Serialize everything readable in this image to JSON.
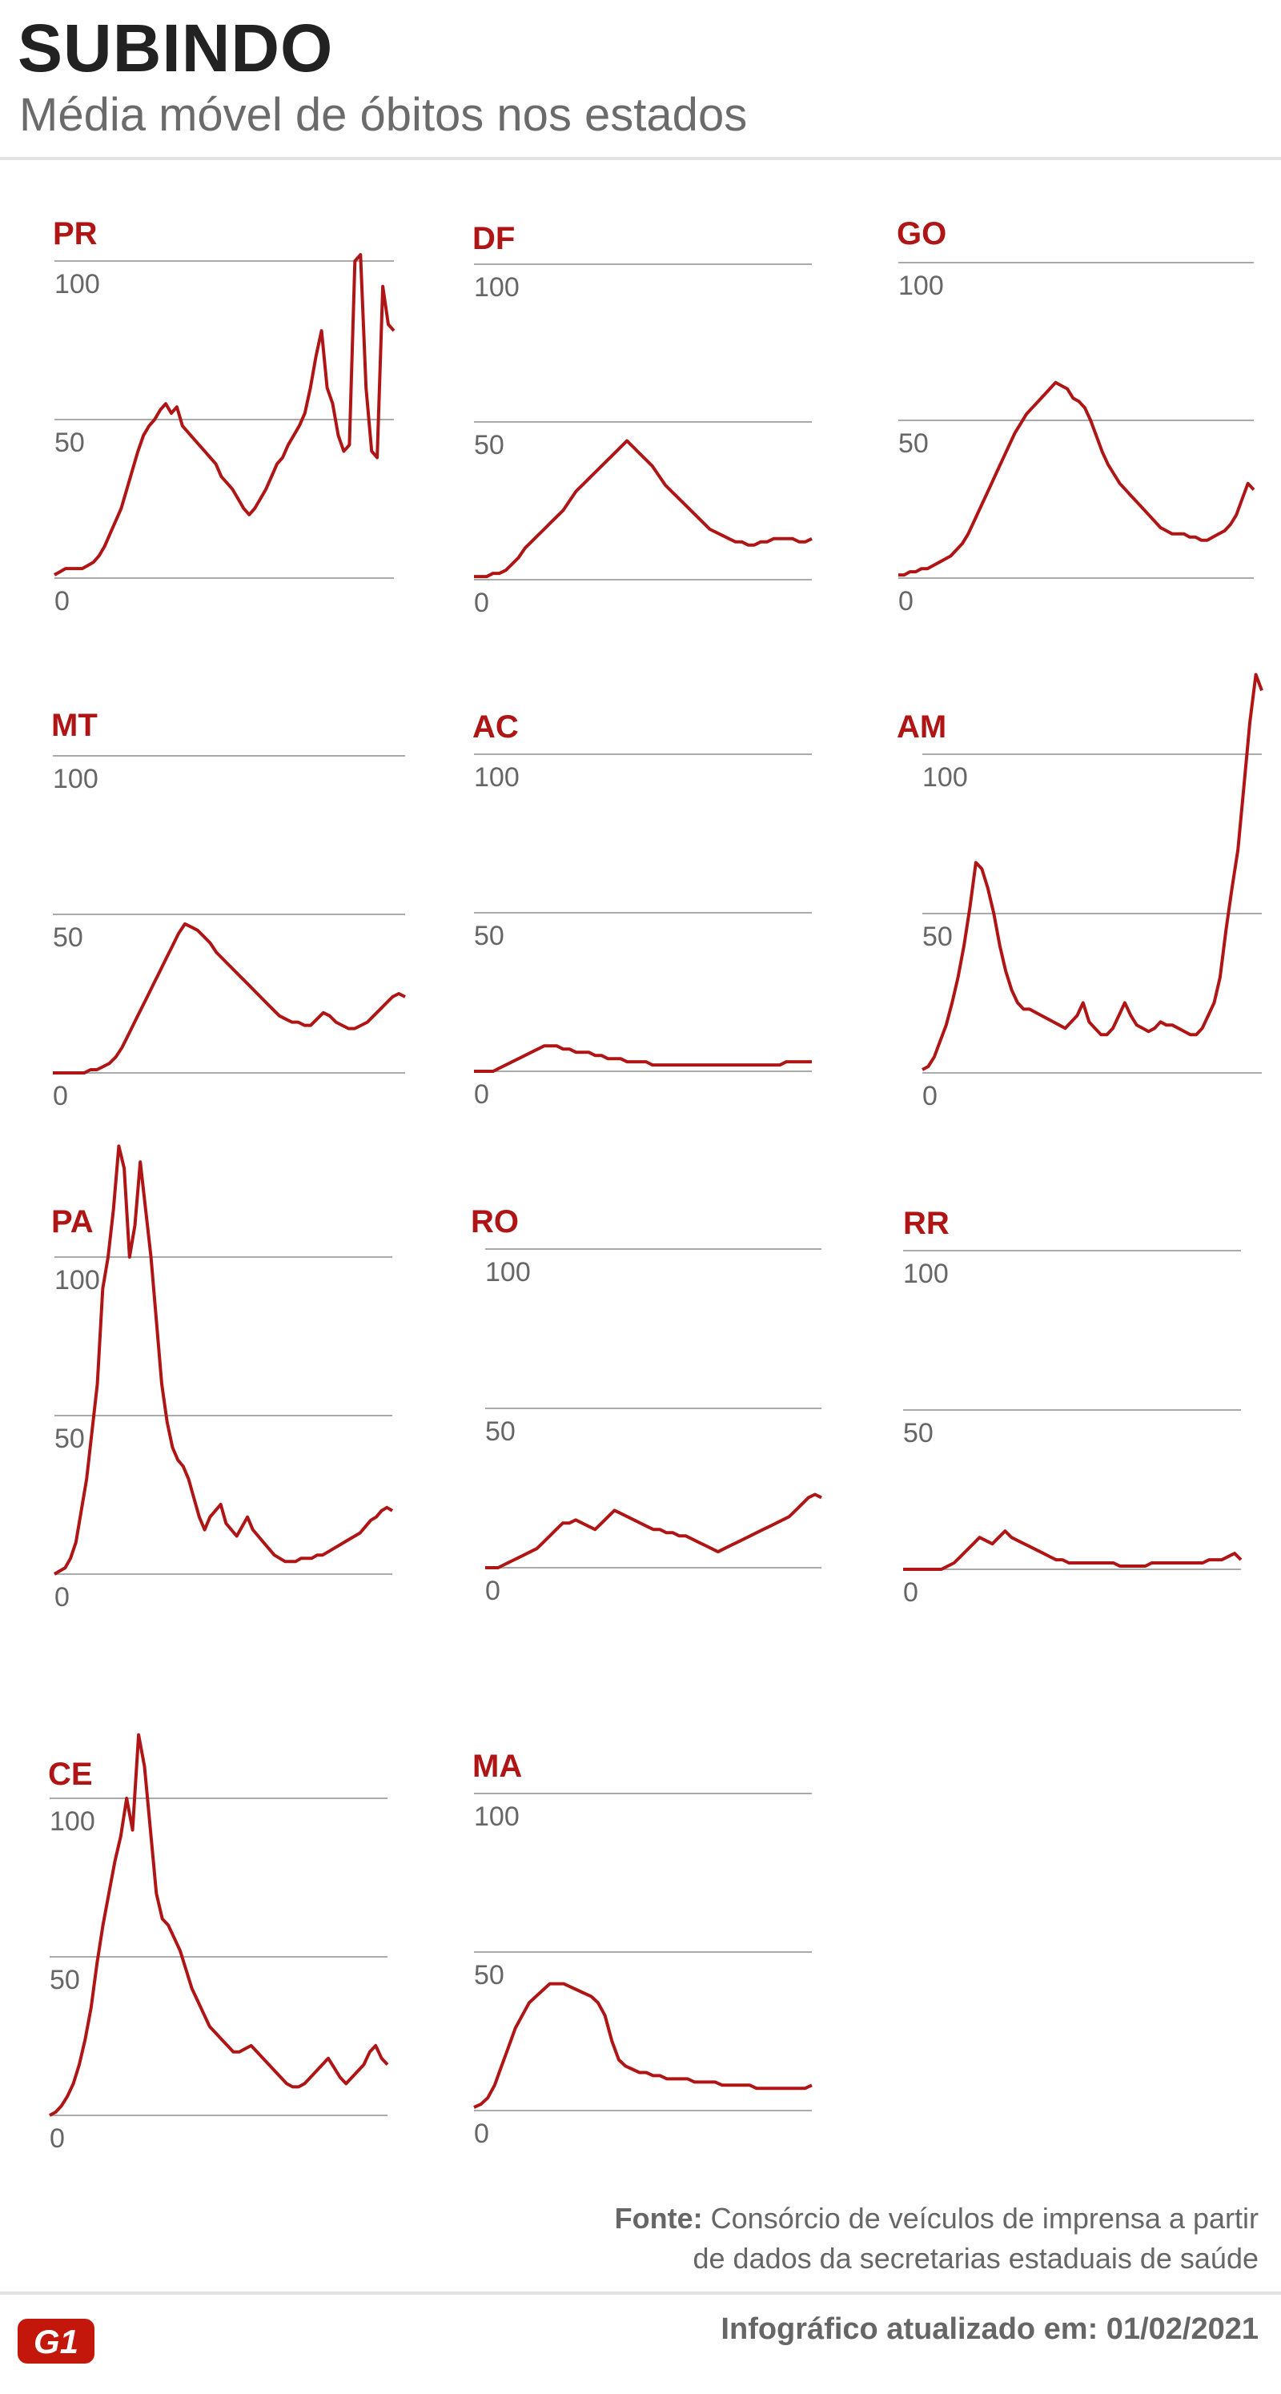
{
  "header": {
    "title": "SUBINDO",
    "subtitle": "Média móvel de óbitos nos estados"
  },
  "footer": {
    "source_label": "Fonte:",
    "source_line1": "Consórcio de veículos de imprensa a partir",
    "source_line2": "de dados da secretarias estaduais de saúde",
    "updated": "Infográfico atualizado em: 01/02/2021",
    "logo_text": "G1"
  },
  "colors": {
    "line": "#b01515",
    "grid": "#aaaaaa",
    "label": "#b01515"
  },
  "chart_data": [
    {
      "type": "line",
      "title": "PR",
      "ylim": [
        0,
        100
      ],
      "yticks": [
        0,
        50,
        100
      ],
      "grid": true,
      "values": [
        1,
        2,
        3,
        3,
        3,
        3,
        4,
        5,
        7,
        10,
        14,
        18,
        22,
        28,
        34,
        40,
        45,
        48,
        50,
        53,
        55,
        52,
        54,
        48,
        46,
        44,
        42,
        40,
        38,
        36,
        32,
        30,
        28,
        25,
        22,
        20,
        22,
        25,
        28,
        32,
        36,
        38,
        42,
        45,
        48,
        52,
        60,
        70,
        78,
        60,
        55,
        45,
        40,
        42,
        100,
        102,
        60,
        40,
        38,
        92,
        80,
        78
      ]
    },
    {
      "type": "line",
      "title": "DF",
      "ylim": [
        0,
        100
      ],
      "yticks": [
        0,
        50,
        100
      ],
      "grid": true,
      "values": [
        1,
        1,
        1,
        2,
        2,
        3,
        5,
        7,
        10,
        12,
        14,
        16,
        18,
        20,
        22,
        25,
        28,
        30,
        32,
        34,
        36,
        38,
        40,
        42,
        44,
        42,
        40,
        38,
        36,
        33,
        30,
        28,
        26,
        24,
        22,
        20,
        18,
        16,
        15,
        14,
        13,
        12,
        12,
        11,
        11,
        12,
        12,
        13,
        13,
        13,
        13,
        12,
        12,
        13
      ]
    },
    {
      "type": "line",
      "title": "GO",
      "ylim": [
        0,
        100
      ],
      "yticks": [
        0,
        50,
        100
      ],
      "grid": true,
      "values": [
        1,
        1,
        2,
        2,
        3,
        3,
        4,
        5,
        6,
        7,
        9,
        11,
        14,
        18,
        22,
        26,
        30,
        34,
        38,
        42,
        46,
        49,
        52,
        54,
        56,
        58,
        60,
        62,
        61,
        60,
        57,
        56,
        54,
        50,
        45,
        40,
        36,
        33,
        30,
        28,
        26,
        24,
        22,
        20,
        18,
        16,
        15,
        14,
        14,
        14,
        13,
        13,
        12,
        12,
        13,
        14,
        15,
        17,
        20,
        25,
        30,
        28
      ]
    },
    {
      "type": "line",
      "title": "MT",
      "ylim": [
        0,
        100
      ],
      "yticks": [
        0,
        50,
        100
      ],
      "grid": true,
      "values": [
        0,
        0,
        0,
        0,
        0,
        0,
        1,
        1,
        2,
        3,
        5,
        8,
        12,
        16,
        20,
        24,
        28,
        32,
        36,
        40,
        44,
        47,
        46,
        45,
        43,
        41,
        38,
        36,
        34,
        32,
        30,
        28,
        26,
        24,
        22,
        20,
        18,
        17,
        16,
        16,
        15,
        15,
        17,
        19,
        18,
        16,
        15,
        14,
        14,
        15,
        16,
        18,
        20,
        22,
        24,
        25,
        24
      ]
    },
    {
      "type": "line",
      "title": "AC",
      "ylim": [
        0,
        100
      ],
      "yticks": [
        0,
        50,
        100
      ],
      "grid": true,
      "values": [
        0,
        0,
        0,
        0,
        1,
        2,
        3,
        4,
        5,
        6,
        7,
        8,
        8,
        8,
        7,
        7,
        6,
        6,
        6,
        5,
        5,
        4,
        4,
        4,
        3,
        3,
        3,
        3,
        2,
        2,
        2,
        2,
        2,
        2,
        2,
        2,
        2,
        2,
        2,
        2,
        2,
        2,
        2,
        2,
        2,
        2,
        2,
        2,
        2,
        3,
        3,
        3,
        3,
        3
      ]
    },
    {
      "type": "line",
      "title": "AM",
      "ylim": [
        0,
        100
      ],
      "yticks": [
        0,
        50,
        100
      ],
      "grid": true,
      "values": [
        1,
        2,
        5,
        10,
        15,
        22,
        30,
        40,
        52,
        66,
        64,
        58,
        50,
        40,
        32,
        26,
        22,
        20,
        20,
        19,
        18,
        17,
        16,
        15,
        14,
        16,
        18,
        22,
        16,
        14,
        12,
        12,
        14,
        18,
        22,
        18,
        15,
        14,
        13,
        14,
        16,
        15,
        15,
        14,
        13,
        12,
        12,
        14,
        18,
        22,
        30,
        45,
        58,
        70,
        90,
        110,
        125,
        120
      ]
    },
    {
      "type": "line",
      "title": "PA",
      "ylim": [
        0,
        100
      ],
      "yticks": [
        0,
        50,
        100
      ],
      "grid": true,
      "values": [
        0,
        1,
        2,
        5,
        10,
        20,
        30,
        45,
        60,
        90,
        100,
        115,
        135,
        128,
        100,
        110,
        130,
        115,
        100,
        80,
        60,
        48,
        40,
        36,
        34,
        30,
        24,
        18,
        14,
        18,
        20,
        22,
        16,
        14,
        12,
        15,
        18,
        14,
        12,
        10,
        8,
        6,
        5,
        4,
        4,
        4,
        5,
        5,
        5,
        6,
        6,
        7,
        8,
        9,
        10,
        11,
        12,
        13,
        15,
        17,
        18,
        20,
        21,
        20
      ]
    },
    {
      "type": "line",
      "title": "RO",
      "ylim": [
        0,
        100
      ],
      "yticks": [
        0,
        50,
        100
      ],
      "grid": true,
      "values": [
        0,
        0,
        0,
        1,
        2,
        3,
        4,
        5,
        6,
        8,
        10,
        12,
        14,
        14,
        15,
        14,
        13,
        12,
        14,
        16,
        18,
        17,
        16,
        15,
        14,
        13,
        12,
        12,
        11,
        11,
        10,
        10,
        9,
        8,
        7,
        6,
        5,
        6,
        7,
        8,
        9,
        10,
        11,
        12,
        13,
        14,
        15,
        16,
        18,
        20,
        22,
        23,
        22
      ]
    },
    {
      "type": "line",
      "title": "RR",
      "ylim": [
        0,
        100
      ],
      "yticks": [
        0,
        50,
        100
      ],
      "grid": true,
      "values": [
        0,
        0,
        0,
        0,
        0,
        0,
        0,
        1,
        2,
        4,
        6,
        8,
        10,
        9,
        8,
        10,
        12,
        10,
        9,
        8,
        7,
        6,
        5,
        4,
        3,
        3,
        2,
        2,
        2,
        2,
        2,
        2,
        2,
        2,
        1,
        1,
        1,
        1,
        1,
        2,
        2,
        2,
        2,
        2,
        2,
        2,
        2,
        2,
        3,
        3,
        3,
        4,
        5,
        3
      ]
    },
    {
      "type": "line",
      "title": "CE",
      "ylim": [
        0,
        100
      ],
      "yticks": [
        0,
        50,
        100
      ],
      "grid": true,
      "values": [
        0,
        1,
        3,
        6,
        10,
        16,
        24,
        34,
        48,
        60,
        70,
        80,
        88,
        100,
        90,
        120,
        110,
        90,
        70,
        62,
        60,
        56,
        52,
        46,
        40,
        36,
        32,
        28,
        26,
        24,
        22,
        20,
        20,
        21,
        22,
        20,
        18,
        16,
        14,
        12,
        10,
        9,
        9,
        10,
        12,
        14,
        16,
        18,
        15,
        12,
        10,
        12,
        14,
        16,
        20,
        22,
        18,
        16
      ]
    },
    {
      "type": "line",
      "title": "MA",
      "ylim": [
        0,
        100
      ],
      "yticks": [
        0,
        50,
        100
      ],
      "grid": true,
      "values": [
        1,
        2,
        4,
        8,
        14,
        20,
        26,
        30,
        34,
        36,
        38,
        40,
        40,
        40,
        39,
        38,
        37,
        36,
        34,
        30,
        22,
        16,
        14,
        13,
        12,
        12,
        11,
        11,
        10,
        10,
        10,
        10,
        9,
        9,
        9,
        9,
        8,
        8,
        8,
        8,
        8,
        7,
        7,
        7,
        7,
        7,
        7,
        7,
        7,
        8
      ]
    }
  ]
}
